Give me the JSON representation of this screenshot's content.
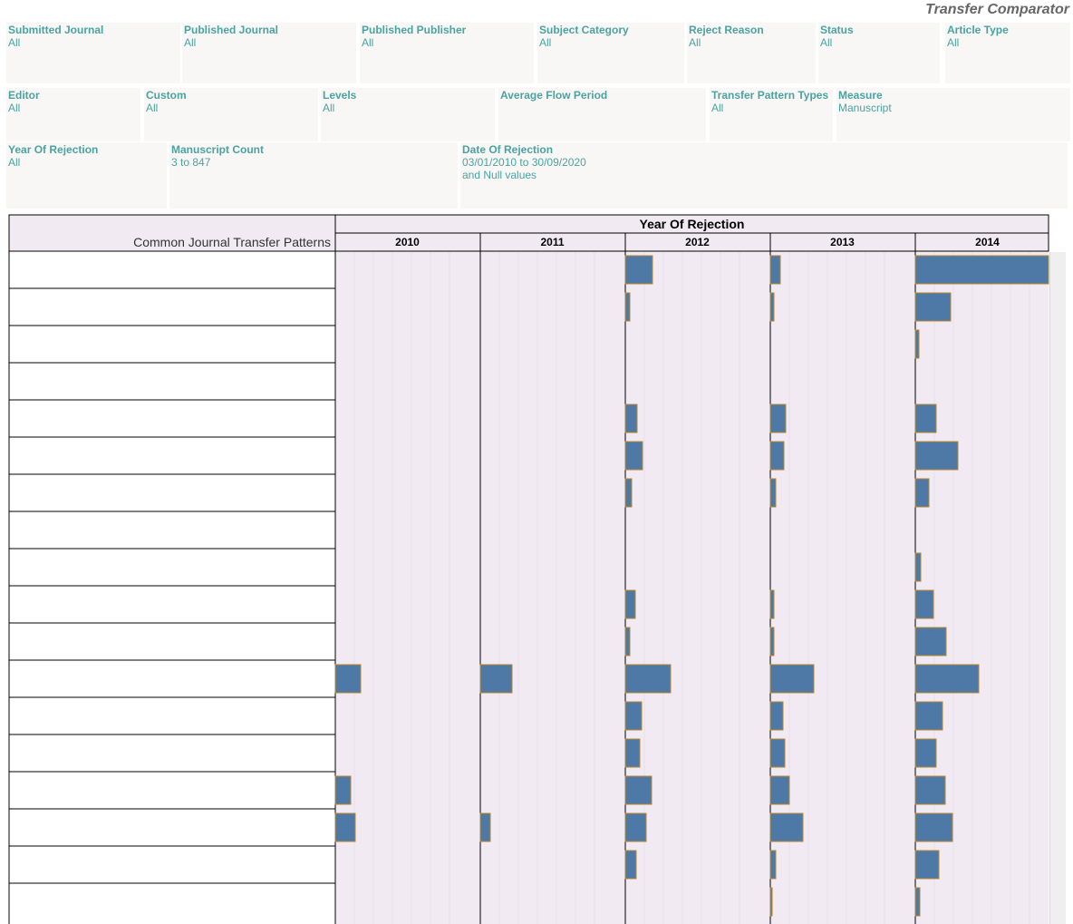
{
  "app": {
    "title": "Transfer Comparator"
  },
  "filters": [
    {
      "label": "Submitted Journal",
      "value": "All"
    },
    {
      "label": "Published Journal",
      "value": "All"
    },
    {
      "label": "Published Publisher",
      "value": "All"
    },
    {
      "label": "Subject Category",
      "value": "All"
    },
    {
      "label": "Reject Reason",
      "value": "All"
    },
    {
      "label": "Status",
      "value": "All"
    },
    {
      "label": "Article Type",
      "value": "All"
    },
    {
      "label": "Editor",
      "value": "All"
    },
    {
      "label": "Custom",
      "value": "All"
    },
    {
      "label": "Levels",
      "value": "All"
    },
    {
      "label": "Average Flow Period",
      "value": ""
    },
    {
      "label": "Transfer Pattern Types",
      "value": "All"
    },
    {
      "label": "Measure",
      "value": "Manuscript"
    },
    {
      "label": "Year Of Rejection",
      "value": "All"
    },
    {
      "label": "Manuscript Count",
      "value": "3 to 847"
    },
    {
      "label": "Date Of Rejection",
      "value": "03/01/2010 to 30/09/2020\nand Null values"
    }
  ],
  "chart_data": {
    "type": "bar",
    "orientation": "horizontal",
    "title": "Year Of Rejection",
    "row_header": "Common Journal Transfer Patterns",
    "categories": [
      "",
      "",
      "",
      "",
      "",
      "",
      "",
      "",
      "",
      "",
      "",
      "",
      "",
      "",
      "",
      "",
      "",
      ""
    ],
    "columns": [
      "2010",
      "2011",
      "2012",
      "2013",
      "2014"
    ],
    "xlim": [
      0,
      147
    ],
    "series": [
      {
        "values": [
          0,
          0,
          0,
          0,
          0,
          0,
          0,
          0,
          0,
          0,
          0,
          28,
          0,
          0,
          17,
          22,
          0,
          0
        ]
      },
      {
        "values": [
          0,
          0,
          0,
          0,
          0,
          0,
          0,
          0,
          0,
          0,
          0,
          35,
          0,
          0,
          0,
          11,
          0,
          0
        ]
      },
      {
        "values": [
          30,
          5,
          0,
          0,
          13,
          19,
          7,
          0,
          0,
          11,
          5,
          50,
          18,
          16,
          29,
          23,
          12,
          0
        ]
      },
      {
        "values": [
          11,
          4,
          0,
          0,
          17,
          15,
          6,
          0,
          0,
          4,
          4,
          48,
          14,
          16,
          21,
          36,
          6,
          2
        ]
      },
      {
        "values": [
          147,
          39,
          4,
          0,
          23,
          47,
          15,
          0,
          6,
          20,
          34,
          70,
          30,
          23,
          33,
          41,
          26,
          5
        ]
      }
    ],
    "colors": {
      "bar": "#4e79a7",
      "bar_stroke": "#b8862b",
      "panel": "#f2eaf2",
      "border": "#000000"
    }
  }
}
